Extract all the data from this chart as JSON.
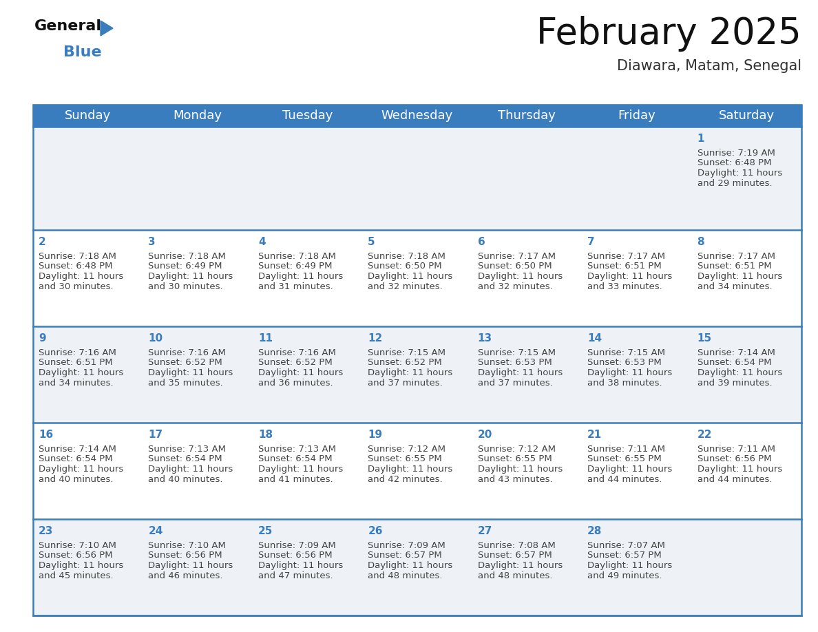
{
  "title": "February 2025",
  "subtitle": "Diawara, Matam, Senegal",
  "header_bg": "#3a7dbf",
  "header_text_color": "#ffffff",
  "cell_bg_odd": "#eef2f7",
  "cell_bg_even": "#ffffff",
  "border_color": "#3a7dbf",
  "day_headers": [
    "Sunday",
    "Monday",
    "Tuesday",
    "Wednesday",
    "Thursday",
    "Friday",
    "Saturday"
  ],
  "days": [
    {
      "day": 1,
      "col": 6,
      "row": 0,
      "sunrise": "7:19 AM",
      "sunset": "6:48 PM",
      "daylight": "11 hours and 29 minutes."
    },
    {
      "day": 2,
      "col": 0,
      "row": 1,
      "sunrise": "7:18 AM",
      "sunset": "6:48 PM",
      "daylight": "11 hours and 30 minutes."
    },
    {
      "day": 3,
      "col": 1,
      "row": 1,
      "sunrise": "7:18 AM",
      "sunset": "6:49 PM",
      "daylight": "11 hours and 30 minutes."
    },
    {
      "day": 4,
      "col": 2,
      "row": 1,
      "sunrise": "7:18 AM",
      "sunset": "6:49 PM",
      "daylight": "11 hours and 31 minutes."
    },
    {
      "day": 5,
      "col": 3,
      "row": 1,
      "sunrise": "7:18 AM",
      "sunset": "6:50 PM",
      "daylight": "11 hours and 32 minutes."
    },
    {
      "day": 6,
      "col": 4,
      "row": 1,
      "sunrise": "7:17 AM",
      "sunset": "6:50 PM",
      "daylight": "11 hours and 32 minutes."
    },
    {
      "day": 7,
      "col": 5,
      "row": 1,
      "sunrise": "7:17 AM",
      "sunset": "6:51 PM",
      "daylight": "11 hours and 33 minutes."
    },
    {
      "day": 8,
      "col": 6,
      "row": 1,
      "sunrise": "7:17 AM",
      "sunset": "6:51 PM",
      "daylight": "11 hours and 34 minutes."
    },
    {
      "day": 9,
      "col": 0,
      "row": 2,
      "sunrise": "7:16 AM",
      "sunset": "6:51 PM",
      "daylight": "11 hours and 34 minutes."
    },
    {
      "day": 10,
      "col": 1,
      "row": 2,
      "sunrise": "7:16 AM",
      "sunset": "6:52 PM",
      "daylight": "11 hours and 35 minutes."
    },
    {
      "day": 11,
      "col": 2,
      "row": 2,
      "sunrise": "7:16 AM",
      "sunset": "6:52 PM",
      "daylight": "11 hours and 36 minutes."
    },
    {
      "day": 12,
      "col": 3,
      "row": 2,
      "sunrise": "7:15 AM",
      "sunset": "6:52 PM",
      "daylight": "11 hours and 37 minutes."
    },
    {
      "day": 13,
      "col": 4,
      "row": 2,
      "sunrise": "7:15 AM",
      "sunset": "6:53 PM",
      "daylight": "11 hours and 37 minutes."
    },
    {
      "day": 14,
      "col": 5,
      "row": 2,
      "sunrise": "7:15 AM",
      "sunset": "6:53 PM",
      "daylight": "11 hours and 38 minutes."
    },
    {
      "day": 15,
      "col": 6,
      "row": 2,
      "sunrise": "7:14 AM",
      "sunset": "6:54 PM",
      "daylight": "11 hours and 39 minutes."
    },
    {
      "day": 16,
      "col": 0,
      "row": 3,
      "sunrise": "7:14 AM",
      "sunset": "6:54 PM",
      "daylight": "11 hours and 40 minutes."
    },
    {
      "day": 17,
      "col": 1,
      "row": 3,
      "sunrise": "7:13 AM",
      "sunset": "6:54 PM",
      "daylight": "11 hours and 40 minutes."
    },
    {
      "day": 18,
      "col": 2,
      "row": 3,
      "sunrise": "7:13 AM",
      "sunset": "6:54 PM",
      "daylight": "11 hours and 41 minutes."
    },
    {
      "day": 19,
      "col": 3,
      "row": 3,
      "sunrise": "7:12 AM",
      "sunset": "6:55 PM",
      "daylight": "11 hours and 42 minutes."
    },
    {
      "day": 20,
      "col": 4,
      "row": 3,
      "sunrise": "7:12 AM",
      "sunset": "6:55 PM",
      "daylight": "11 hours and 43 minutes."
    },
    {
      "day": 21,
      "col": 5,
      "row": 3,
      "sunrise": "7:11 AM",
      "sunset": "6:55 PM",
      "daylight": "11 hours and 44 minutes."
    },
    {
      "day": 22,
      "col": 6,
      "row": 3,
      "sunrise": "7:11 AM",
      "sunset": "6:56 PM",
      "daylight": "11 hours and 44 minutes."
    },
    {
      "day": 23,
      "col": 0,
      "row": 4,
      "sunrise": "7:10 AM",
      "sunset": "6:56 PM",
      "daylight": "11 hours and 45 minutes."
    },
    {
      "day": 24,
      "col": 1,
      "row": 4,
      "sunrise": "7:10 AM",
      "sunset": "6:56 PM",
      "daylight": "11 hours and 46 minutes."
    },
    {
      "day": 25,
      "col": 2,
      "row": 4,
      "sunrise": "7:09 AM",
      "sunset": "6:56 PM",
      "daylight": "11 hours and 47 minutes."
    },
    {
      "day": 26,
      "col": 3,
      "row": 4,
      "sunrise": "7:09 AM",
      "sunset": "6:57 PM",
      "daylight": "11 hours and 48 minutes."
    },
    {
      "day": 27,
      "col": 4,
      "row": 4,
      "sunrise": "7:08 AM",
      "sunset": "6:57 PM",
      "daylight": "11 hours and 48 minutes."
    },
    {
      "day": 28,
      "col": 5,
      "row": 4,
      "sunrise": "7:07 AM",
      "sunset": "6:57 PM",
      "daylight": "11 hours and 49 minutes."
    }
  ],
  "logo_text1": "General",
  "logo_text2": "Blue",
  "bg_color": "#ffffff",
  "text_color": "#333333",
  "day_num_color": "#3a7dbf",
  "cell_text_color": "#444444",
  "title_fontsize": 38,
  "subtitle_fontsize": 15,
  "header_fontsize": 13,
  "day_num_fontsize": 11,
  "cell_fontsize": 9.5
}
